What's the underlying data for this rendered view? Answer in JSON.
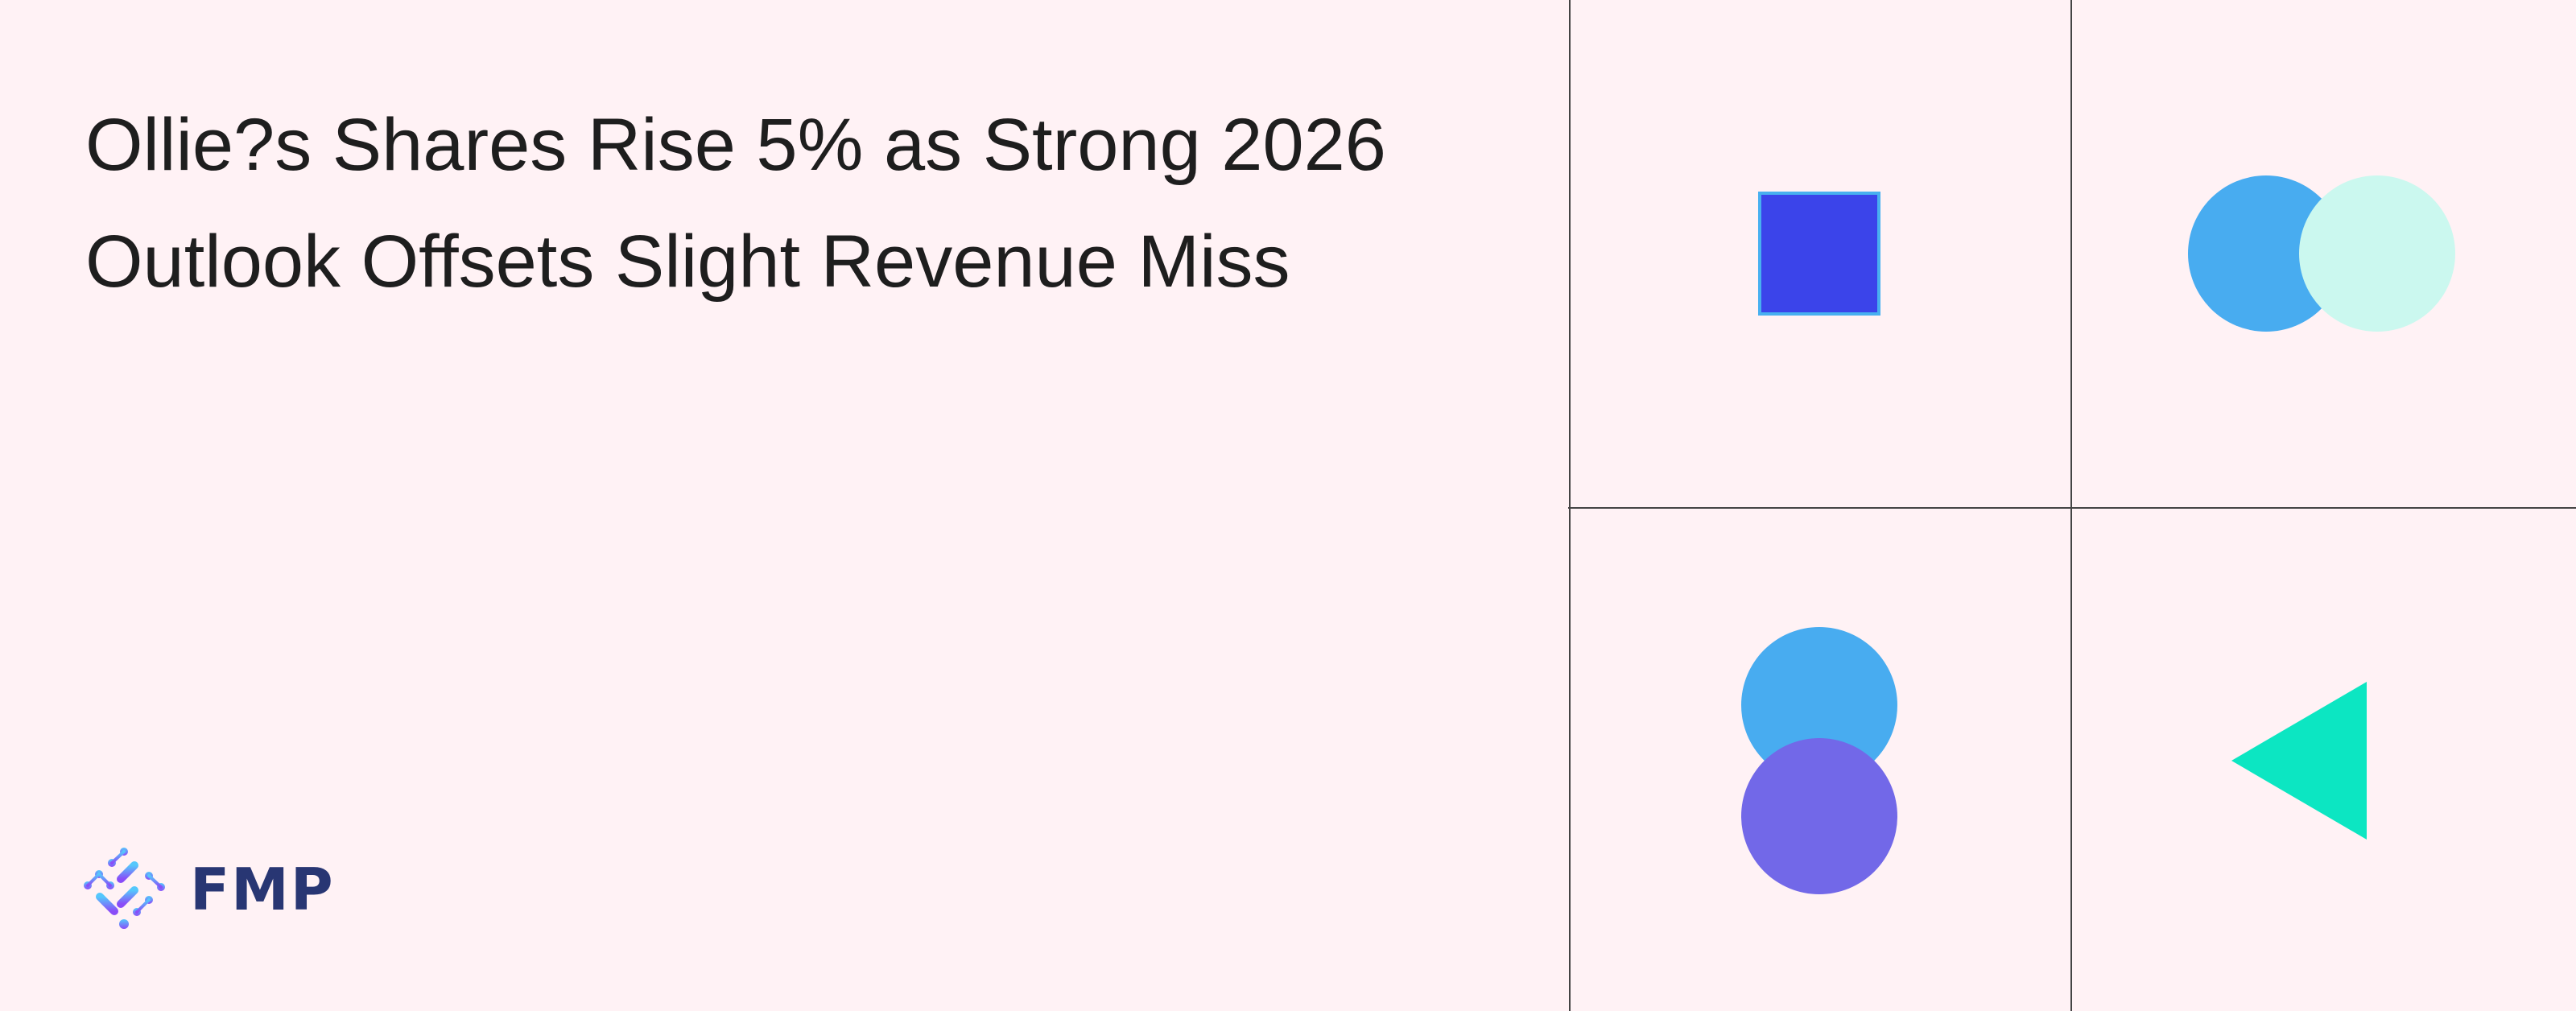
{
  "headline": {
    "line1": "Ollie?s Shares Rise 5% as Strong 2026",
    "line2": "Outlook Offsets Slight Revenue Miss"
  },
  "logo": {
    "text": "FMP",
    "color": "#283673"
  },
  "graphics": {
    "grid_line_color": "#444444",
    "shapes": [
      {
        "cell": "top-left",
        "type": "square",
        "fill": "#3b44ea",
        "stroke": "#48b0f0"
      },
      {
        "cell": "top-right",
        "type": "two-circles-horizontal",
        "fills": [
          "#48acf0",
          "#cbf8ef"
        ]
      },
      {
        "cell": "bottom-left",
        "type": "two-circles-vertical",
        "fills": [
          "#48acf0",
          "#7268e8"
        ]
      },
      {
        "cell": "bottom-right",
        "type": "triangle-left",
        "fill": "#0ce6c2"
      }
    ]
  }
}
